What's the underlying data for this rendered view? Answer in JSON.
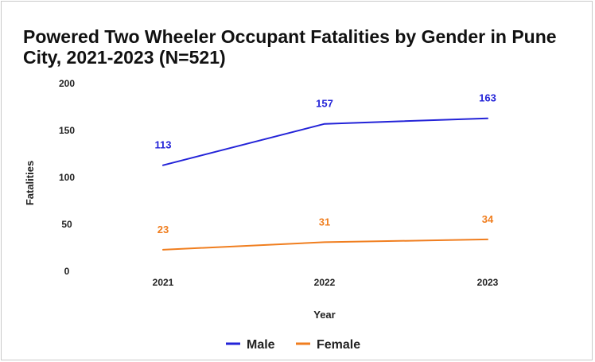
{
  "chart_data": {
    "type": "line",
    "title": "Powered Two Wheeler Occupant Fatalities by Gender in Pune City, 2021-2023 (N=521)",
    "xlabel": "Year",
    "ylabel": "Fatalities",
    "categories": [
      "2021",
      "2022",
      "2023"
    ],
    "y_ticks": [
      "0",
      "50",
      "100",
      "150",
      "200"
    ],
    "ylim": [
      0,
      200
    ],
    "grid": false,
    "legend_position": "bottom",
    "series": [
      {
        "name": "Male",
        "values": [
          113,
          157,
          163
        ],
        "labels": [
          "113",
          "157",
          "163"
        ],
        "color": "#2323d8"
      },
      {
        "name": "Female",
        "values": [
          23,
          31,
          34
        ],
        "labels": [
          "23",
          "31",
          "34"
        ],
        "color": "#f07e1f"
      }
    ]
  }
}
